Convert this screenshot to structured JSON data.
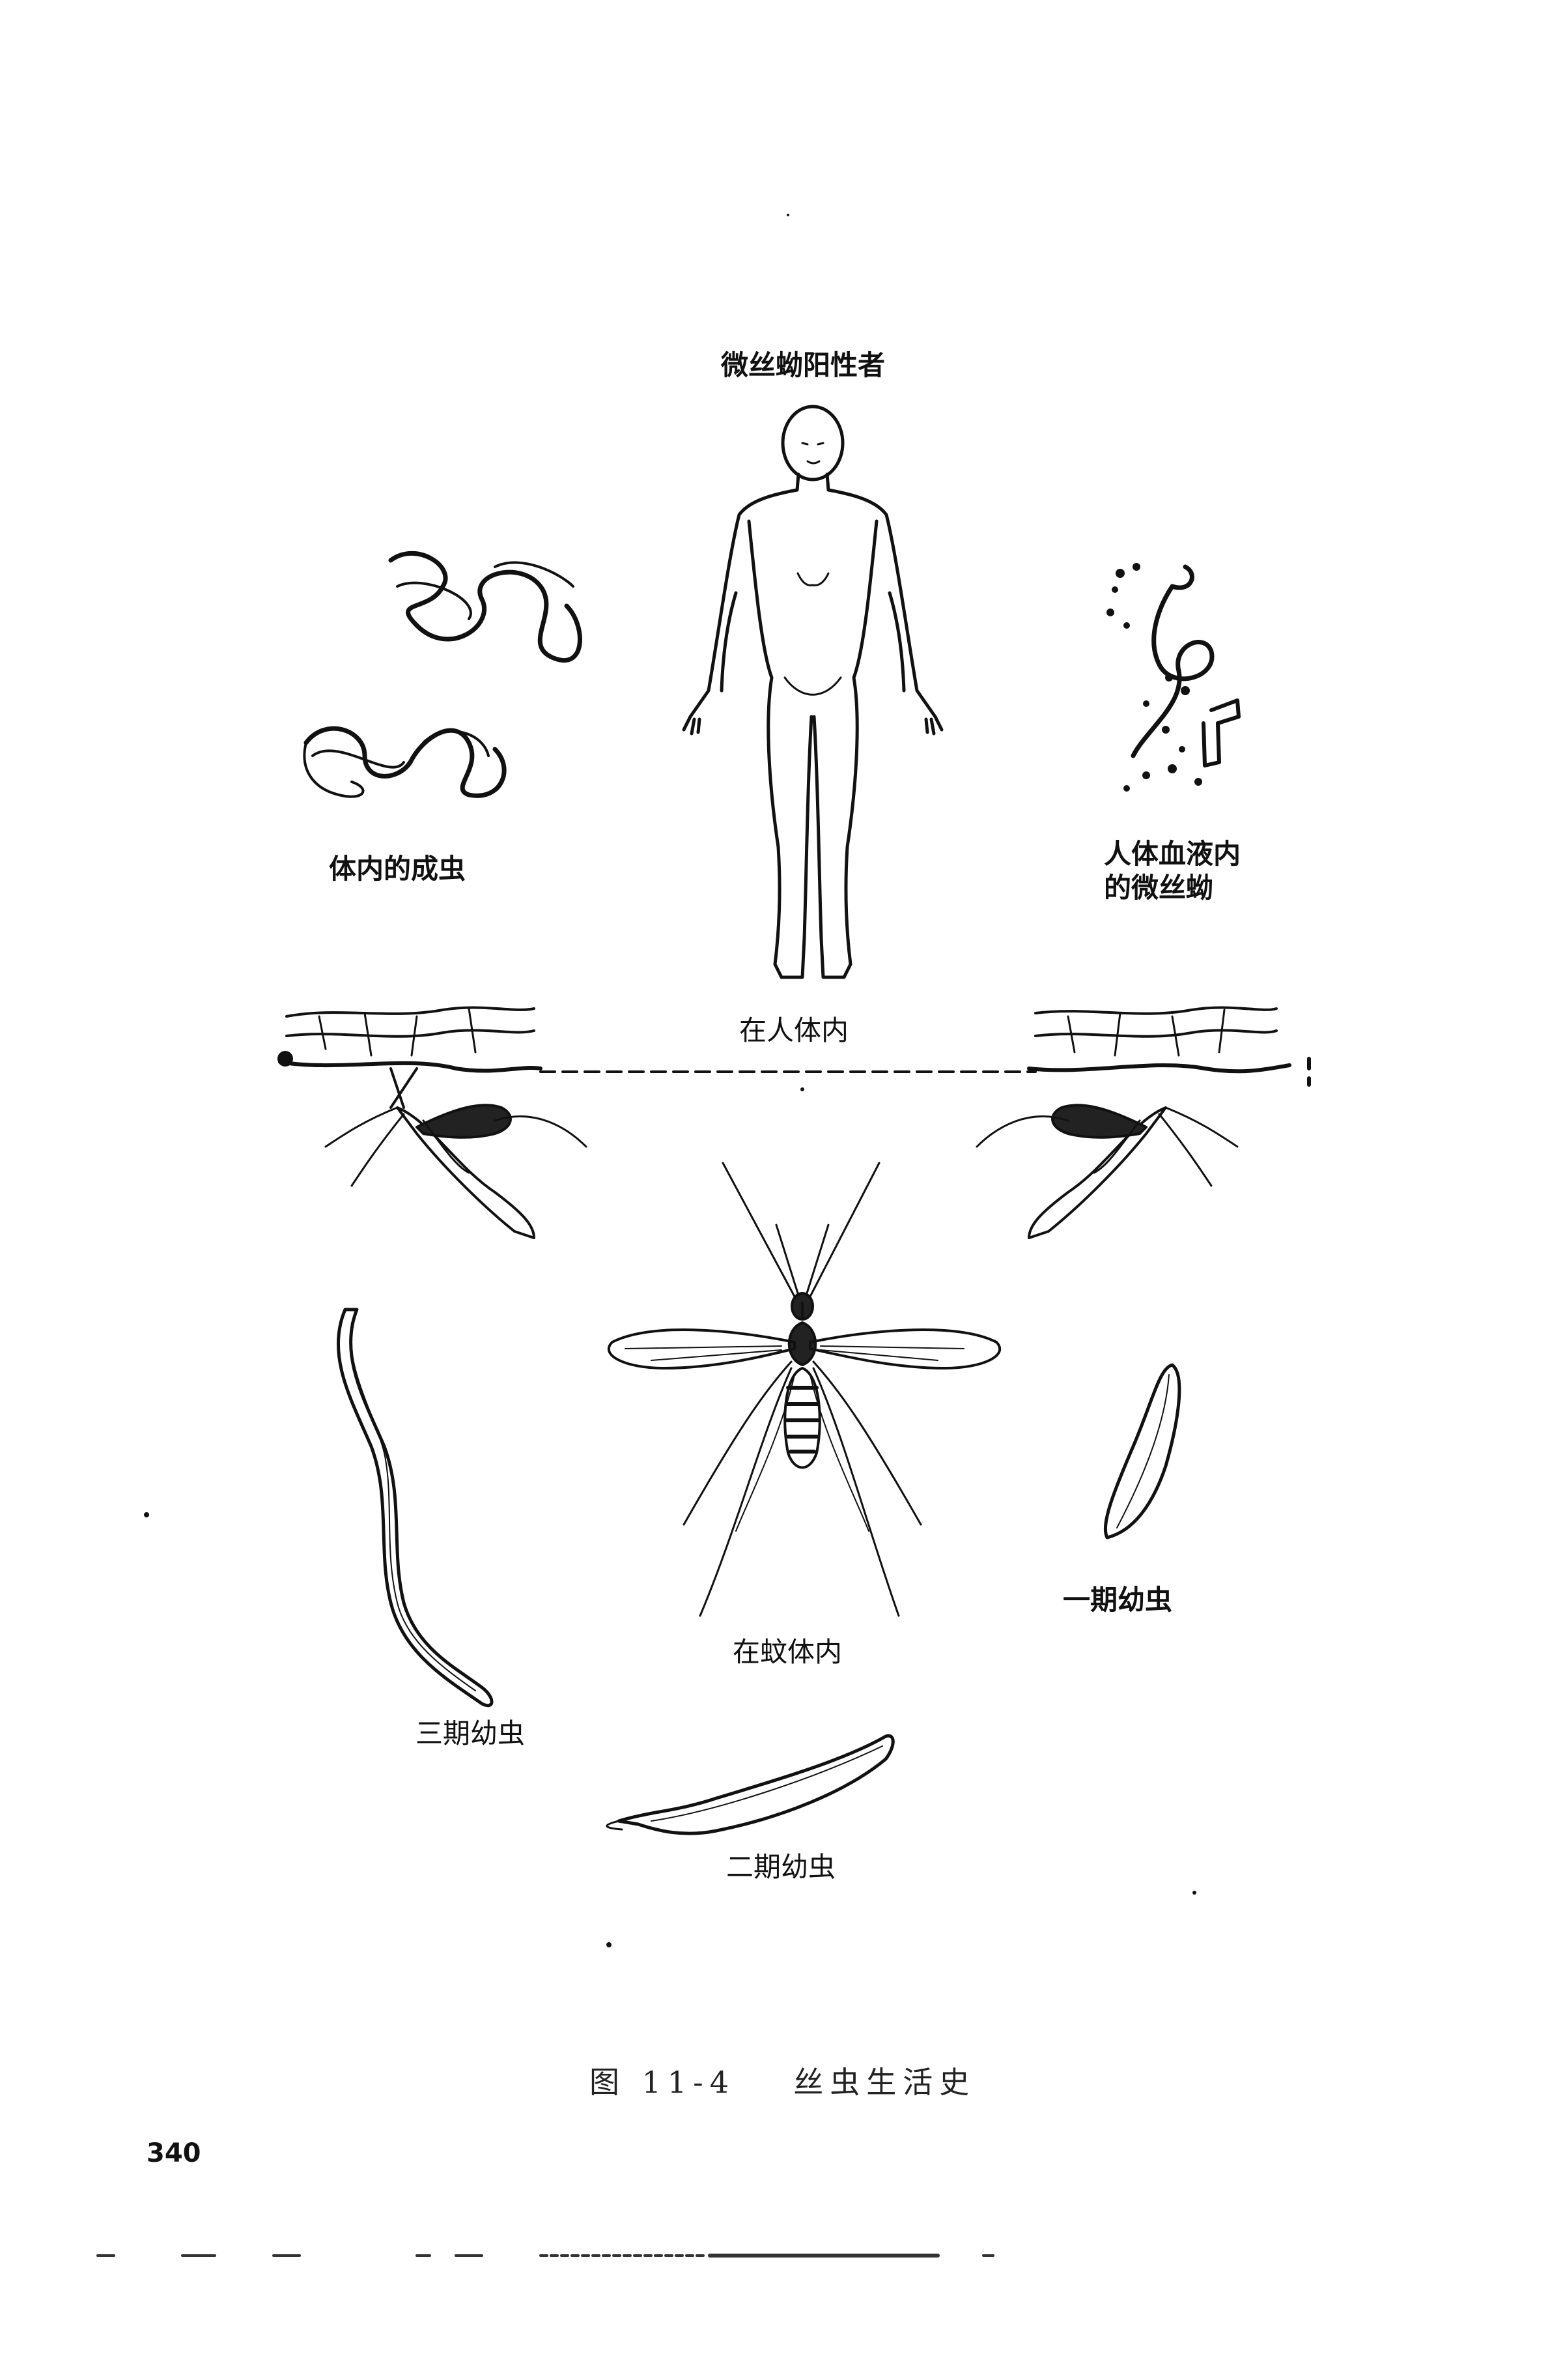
{
  "labels": {
    "positive_person": "微丝蚴阳性者",
    "adult_worms": "体内的成虫",
    "blood_microfilaria_line1": "人体血液内",
    "blood_microfilaria_line2": "的微丝蚴",
    "in_human": "在人体内",
    "in_mosquito": "在蚊体内",
    "larva_stage1": "一期幼虫",
    "larva_stage2": "二期幼虫",
    "larva_stage3": "三期幼虫"
  },
  "caption": {
    "figure_number": "图 11-4",
    "title": "丝虫生活史"
  },
  "page_number": "340"
}
